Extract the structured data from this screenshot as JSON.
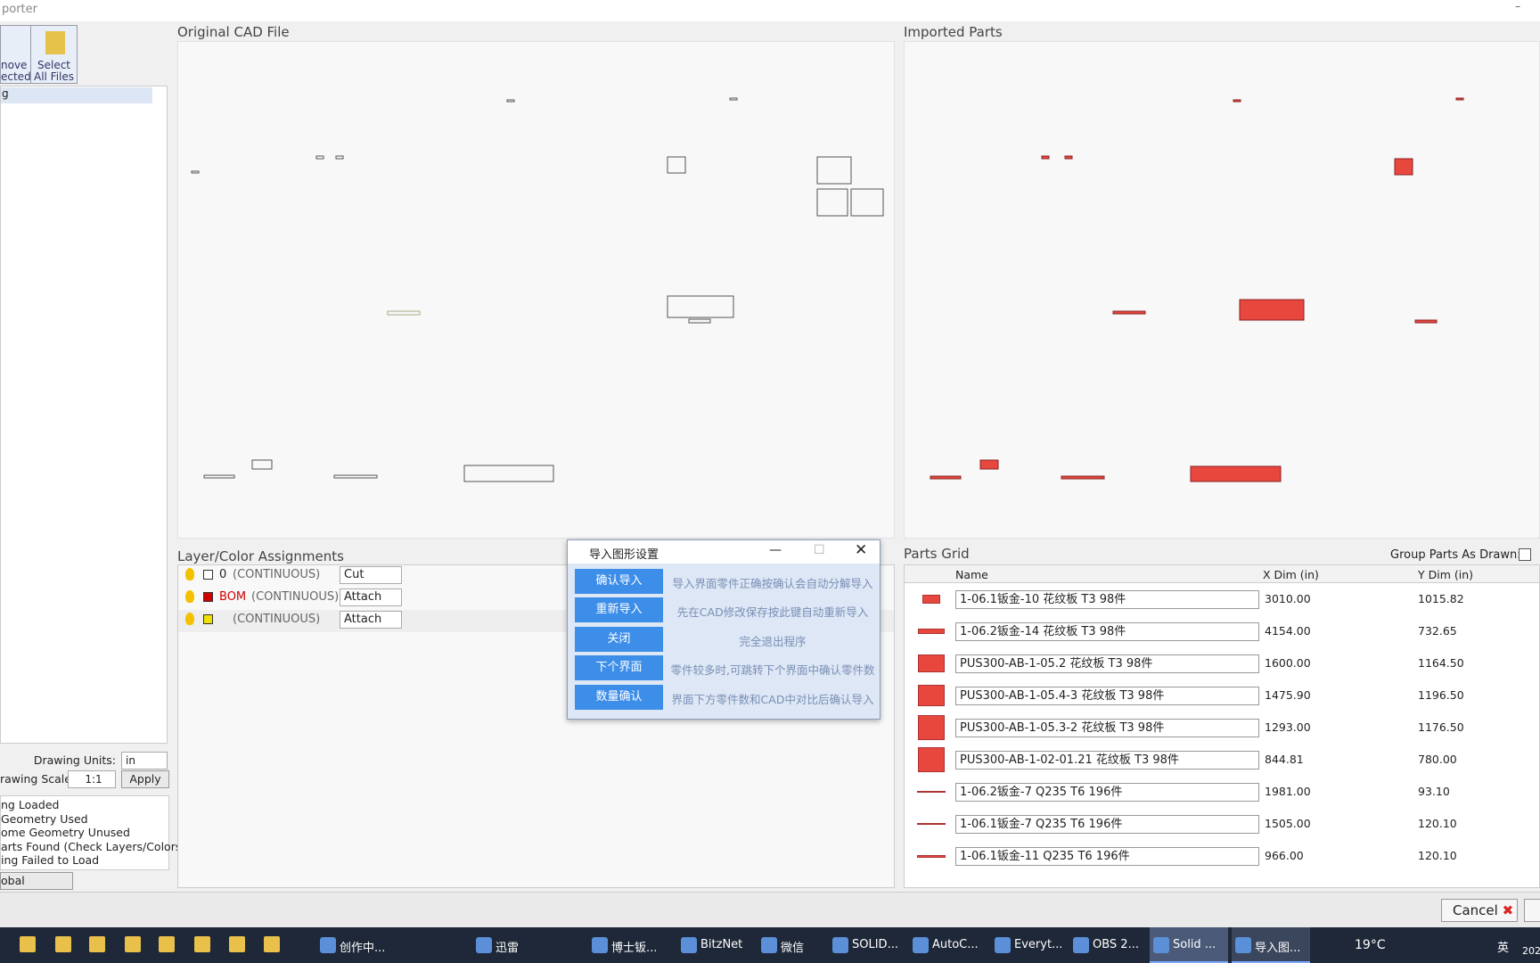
{
  "window": {
    "title": "porter"
  },
  "toolbar": {
    "remove": [
      "nove",
      "ected"
    ],
    "select": [
      "Select",
      "All Files"
    ]
  },
  "file_list": [
    "g"
  ],
  "panes": {
    "original": "Original CAD File",
    "imported": "Imported Parts"
  },
  "layers": {
    "title": "Layer/Color Assignments",
    "rows": [
      {
        "name": "0",
        "swatch": "#ffffff",
        "linetype": "(CONTINUOUS)",
        "action": "Cut"
      },
      {
        "name": "BOM",
        "swatch": "#d00000",
        "linetype": "(CONTINUOUS)",
        "action": "Attach"
      },
      {
        "swatch": "#f0e000",
        "linetype": "(CONTINUOUS)",
        "action": "Attach"
      }
    ]
  },
  "settings": {
    "units_label": "Drawing Units:",
    "units": "in",
    "scale_label": "rawing Scale:",
    "scale": "1:1",
    "apply": "Apply"
  },
  "status": [
    "ng Loaded",
    "Geometry Used",
    "ome Geometry Unused",
    "arts Found (Check Layers/Colors)",
    "ing Failed to Load"
  ],
  "global_settings": "obal Settings",
  "dialog": {
    "title": "导入图形设置",
    "actions": [
      {
        "button": "确认导入",
        "note": "导入界面零件正确按确认会自动分解导入"
      },
      {
        "button": "重新导入",
        "note": "先在CAD修改保存按此键自动重新导入"
      },
      {
        "button": "关闭",
        "note": "完全退出程序"
      },
      {
        "button": "下个界面",
        "note": "零件较多时,可跳转下个界面中确认零件数"
      },
      {
        "button": "数量确认",
        "note": "界面下方零件数和CAD中对比后确认导入"
      }
    ]
  },
  "parts_grid": {
    "title": "Parts Grid",
    "group_label": "Group Parts As Drawn:",
    "columns": [
      "Name",
      "X Dim (in)",
      "Y Dim (in)"
    ],
    "rows": [
      [
        "1-06.1钣金-10 花纹板 T3 98件",
        "3010.00",
        "1015.82"
      ],
      [
        "1-06.2钣金-14 花纹板 T3 98件",
        "4154.00",
        "732.65"
      ],
      [
        "PUS300-AB-1-05.2 花纹板 T3 98件",
        "1600.00",
        "1164.50"
      ],
      [
        "PUS300-AB-1-05.4-3 花纹板 T3 98件",
        "1475.90",
        "1196.50"
      ],
      [
        "PUS300-AB-1-05.3-2 花纹板 T3 98件",
        "1293.00",
        "1176.50"
      ],
      [
        "PUS300-AB-1-02-01.21 花纹板 T3 98件",
        "844.81",
        "780.00"
      ],
      [
        "1-06.2钣金-7 Q235 T6 196件",
        "1981.00",
        "93.10"
      ],
      [
        "1-06.1钣金-7 Q235 T6 196件",
        "1505.00",
        "120.10"
      ],
      [
        "1-06.1钣金-11 Q235 T6 196件",
        "966.00",
        "120.10"
      ]
    ]
  },
  "footer": {
    "cancel": "Cancel"
  },
  "taskbar": {
    "apps": [
      "创作中...",
      "迅雷",
      "博士钣...",
      "BitzNet",
      "微信",
      "SOLID...",
      "AutoC...",
      "Everyt...",
      "OBS 2...",
      "Solid ...",
      "导入图..."
    ],
    "weather": "19°C",
    "ime": "英",
    "clock": "202"
  }
}
